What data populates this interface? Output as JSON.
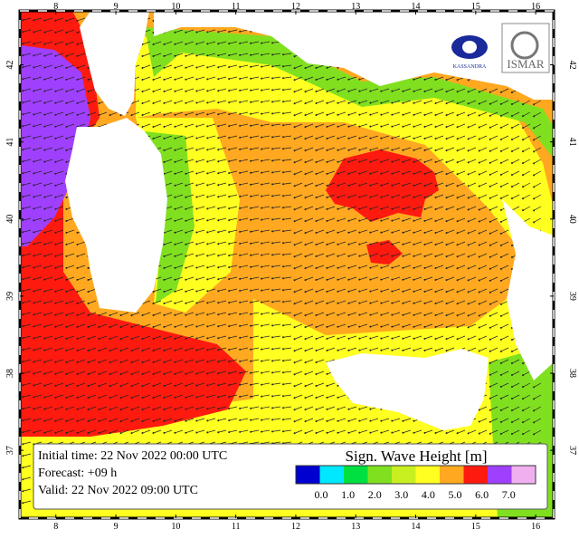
{
  "map": {
    "lon_ticks": [
      8,
      9,
      10,
      11,
      12,
      13,
      14,
      15,
      16
    ],
    "lat_ticks": [
      37,
      38,
      39,
      40,
      41,
      42
    ],
    "lon_range": [
      7.4,
      16.3
    ],
    "lat_range": [
      36.12,
      42.7
    ]
  },
  "info": {
    "lines": [
      "Initial time: 22 Nov 2022 00:00 UTC",
      "Forecast: +09 h",
      "Valid: 22 Nov 2022 09:00 UTC"
    ]
  },
  "legend": {
    "title": "Sign. Wave Height [m]",
    "colors": [
      "#0000d0",
      "#00e8ff",
      "#00e040",
      "#80e020",
      "#c8f020",
      "#ffff20",
      "#ffa820",
      "#ff1a10",
      "#a040ff",
      "#f0b0f0"
    ],
    "labels": [
      "0.0",
      "1.0",
      "2.0",
      "3.0",
      "4.0",
      "5.0",
      "6.0",
      "7.0"
    ]
  },
  "logos": [
    "KASSANDRA",
    "ISMAR"
  ]
}
